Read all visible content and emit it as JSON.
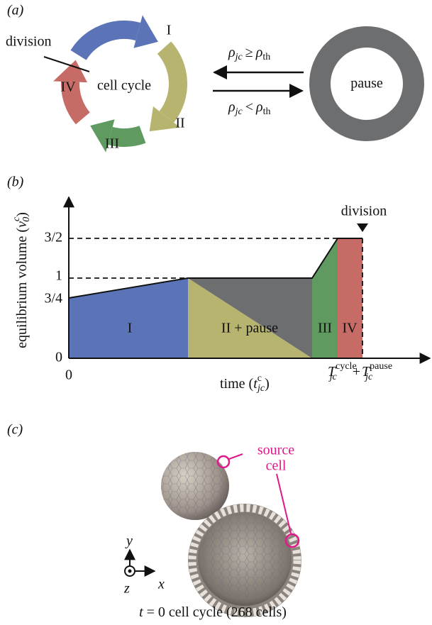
{
  "panel_a": {
    "label": "(a)",
    "cycle_label": "cell cycle",
    "division": "division",
    "phases": [
      "I",
      "II",
      "III",
      "IV"
    ],
    "pause": "pause",
    "arrow_top": {
      "lhs": "ρ",
      "lhs_sub": "jc",
      "op": "≥",
      "rhs": "ρ",
      "rhs_sub": "th"
    },
    "arrow_bottom": {
      "lhs": "ρ",
      "lhs_sub": "jc",
      "op": "<",
      "rhs": "ρ",
      "rhs_sub": "th"
    }
  },
  "panel_b": {
    "label": "(b)",
    "y_axis_label": {
      "text": "equilibrium volume (",
      "var": "v",
      "sub": "0",
      "sup": "c",
      "close": ")"
    },
    "yticks": [
      "0",
      "3/4",
      "1",
      "3/2"
    ],
    "x_origin": "0",
    "x_axis_label": {
      "text": "time (",
      "var": "t",
      "sub": "jc",
      "sup": "c",
      "close": ")"
    },
    "x_end": {
      "var1": "T",
      "sub1": "jc",
      "sup1": "cycle",
      "op": "+",
      "var2": "T",
      "sub2": "jc",
      "sup2": "pause"
    },
    "regions": [
      "I",
      "II + pause",
      "III",
      "IV"
    ],
    "division": "division"
  },
  "panel_c": {
    "label": "(c)",
    "source_cell": [
      "source",
      "cell"
    ],
    "axes": {
      "y": "y",
      "x": "x",
      "z": "z"
    },
    "caption": {
      "var": "t",
      "text": " = 0 cell cycle (268 cells)"
    }
  }
}
